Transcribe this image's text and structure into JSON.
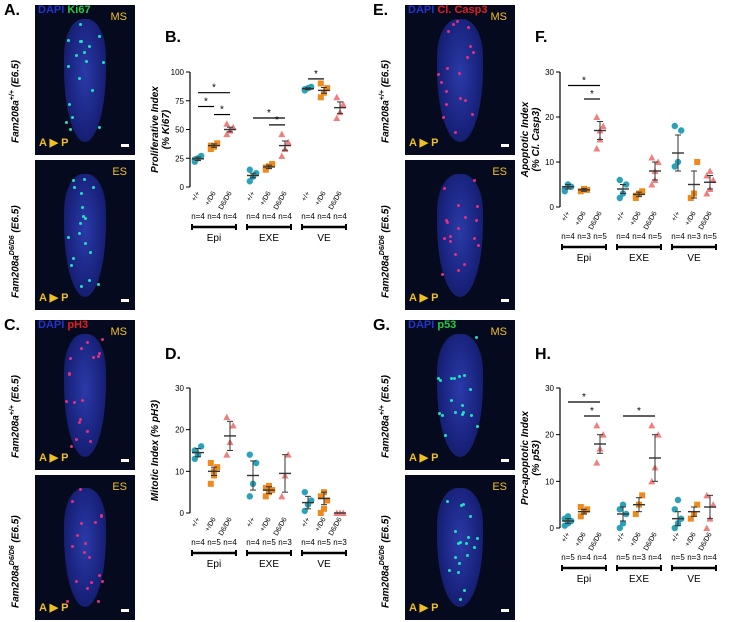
{
  "panels": [
    {
      "id": "A",
      "label": "A.",
      "type": "image",
      "ch1": "DAPI",
      "ch2": "Ki67",
      "ch2_color": "#22cc44",
      "stage_top": "MS",
      "stage_bottom": "ES",
      "axis": "A",
      "axis_p": "P",
      "geno_top_base": "Fam208a",
      "geno_top_sup": "+/+",
      "geno_top_suffix": "(E6.5)",
      "geno_bot_base": "Fam208a",
      "geno_bot_sup": "D6/D6",
      "geno_bot_suffix": "(E6.5)",
      "dot": "#22e0c0"
    },
    {
      "id": "E",
      "label": "E.",
      "type": "image",
      "ch1": "DAPI",
      "ch2": "Cl. Casp3",
      "ch2_color": "#e02020",
      "stage_top": "MS",
      "stage_bottom": "ES",
      "axis": "A",
      "axis_p": "P",
      "geno_top_base": "Fam208a",
      "geno_top_sup": "+/+",
      "geno_top_suffix": "(E6.5)",
      "geno_bot_base": "Fam208a",
      "geno_bot_sup": "D6/D6",
      "geno_bot_suffix": "(E6.5)",
      "dot": "#e03080"
    },
    {
      "id": "C",
      "label": "C.",
      "type": "image",
      "ch1": "DAPI",
      "ch2": "pH3",
      "ch2_color": "#e02020",
      "stage_top": "MS",
      "stage_bottom": "ES",
      "axis": "A",
      "axis_p": "P",
      "geno_top_base": "Fam208a",
      "geno_top_sup": "+/+",
      "geno_top_suffix": "(E6.5)",
      "geno_bot_base": "Fam208a",
      "geno_bot_sup": "D6/D6",
      "geno_bot_suffix": "(E6.5)",
      "dot": "#e03080"
    },
    {
      "id": "G",
      "label": "G.",
      "type": "image",
      "ch1": "DAPI",
      "ch2": "p53",
      "ch2_color": "#22cc44",
      "stage_top": "MS",
      "stage_bottom": "ES",
      "axis": "A",
      "axis_p": "P",
      "geno_top_base": "Fam208a",
      "geno_top_sup": "+/+",
      "geno_top_suffix": "(E6.5)",
      "geno_bot_base": "Fam208a",
      "geno_bot_sup": "D6/D6",
      "geno_bot_suffix": "(E6.5)",
      "dot": "#22e0c0"
    }
  ],
  "colors": {
    "wt": "#2aa3b8",
    "het": "#f08a1c",
    "ko": "#f08080"
  },
  "chart_data": [
    {
      "panel_label": "B.",
      "type": "scatter",
      "ylabel": "Proliferative Index (% Ki67)",
      "ylim": [
        0,
        100
      ],
      "yticks": [
        0,
        25,
        50,
        75,
        100
      ],
      "genotypes": [
        "+/+",
        "+/D6",
        "D6/D6"
      ],
      "groups": [
        "Epi",
        "EXE",
        "VE"
      ],
      "n_labels": [
        "n=4",
        "n=4",
        "n=4",
        "n=4",
        "n=4",
        "n=4",
        "n=4",
        "n=4",
        "n=4"
      ],
      "points": [
        [
          [
            22,
            25,
            27,
            24
          ],
          [
            33,
            35,
            38,
            36
          ],
          [
            46,
            49,
            52,
            55
          ]
        ],
        [
          [
            5,
            9,
            12,
            15
          ],
          [
            15,
            18,
            20,
            17
          ],
          [
            27,
            33,
            39,
            46
          ]
        ],
        [
          [
            84,
            86,
            87,
            85
          ],
          [
            78,
            82,
            86,
            90
          ],
          [
            60,
            65,
            72,
            78
          ]
        ]
      ],
      "mean": [
        [
          24.5,
          36,
          50
        ],
        [
          10,
          17.5,
          36
        ],
        [
          85.5,
          84,
          69
        ]
      ],
      "sem": [
        [
          1.5,
          1.5,
          2
        ],
        [
          2,
          1.5,
          4
        ],
        [
          0.8,
          2.5,
          5
        ]
      ],
      "sig": [
        {
          "g": 0,
          "a": 0,
          "b": 1,
          "y": 70,
          "text": "*"
        },
        {
          "g": 0,
          "a": 0,
          "b": 2,
          "y": 82,
          "text": "*"
        },
        {
          "g": 0,
          "a": 1,
          "b": 2,
          "y": 63,
          "text": "*"
        },
        {
          "g": 1,
          "a": 0,
          "b": 2,
          "y": 60,
          "text": "*"
        },
        {
          "g": 1,
          "a": 1,
          "b": 2,
          "y": 54,
          "text": "*"
        },
        {
          "g": 2,
          "a": 0,
          "b": 1,
          "y": 94,
          "text": "*"
        }
      ]
    },
    {
      "panel_label": "F.",
      "type": "scatter",
      "ylabel": "Apoptotic Index (% Cl. Casp3)",
      "ylim": [
        0,
        30
      ],
      "yticks": [
        0,
        10,
        20,
        30
      ],
      "genotypes": [
        "+/+",
        "+/D6",
        "D6/D6"
      ],
      "groups": [
        "Epi",
        "EXE",
        "VE"
      ],
      "n_labels": [
        "n=4",
        "n=3",
        "n=5",
        "n=4",
        "n=4",
        "n=5",
        "n=4",
        "n=3",
        "n=5"
      ],
      "points": [
        [
          [
            4,
            5,
            4.5,
            3.5
          ],
          [
            3.5,
            4,
            3.8
          ],
          [
            13,
            15,
            18,
            20,
            17
          ]
        ],
        [
          [
            2,
            3,
            5,
            6
          ],
          [
            2,
            3,
            3.5,
            2.5
          ],
          [
            5,
            6,
            10,
            11,
            8
          ]
        ],
        [
          [
            9,
            10,
            17,
            18
          ],
          [
            2,
            3,
            10
          ],
          [
            3,
            4,
            6,
            7,
            8
          ]
        ]
      ],
      "mean": [
        [
          4.5,
          3.8,
          17
        ],
        [
          4,
          2.8,
          8
        ],
        [
          12,
          5,
          5.5
        ]
      ],
      "sem": [
        [
          0.5,
          0.3,
          2
        ],
        [
          1,
          0.5,
          2
        ],
        [
          4,
          3,
          1.5
        ]
      ],
      "sig": [
        {
          "g": 0,
          "a": 0,
          "b": 2,
          "y": 27,
          "text": "*"
        },
        {
          "g": 0,
          "a": 1,
          "b": 2,
          "y": 24,
          "text": "*"
        }
      ]
    },
    {
      "panel_label": "D.",
      "type": "scatter",
      "ylabel": "Mitotic Index (% pH3)",
      "ylim": [
        0,
        30
      ],
      "yticks": [
        0,
        10,
        20,
        30
      ],
      "genotypes": [
        "+/+",
        "+/D6",
        "D6/D6"
      ],
      "groups": [
        "Epi",
        "EXE",
        "VE"
      ],
      "n_labels": [
        "n=4",
        "n=5",
        "n=4",
        "n=4",
        "n=5",
        "n=3",
        "n=4",
        "n=5",
        "n=3"
      ],
      "points": [
        [
          [
            13,
            14,
            16,
            15
          ],
          [
            7,
            9,
            11,
            12,
            10
          ],
          [
            14,
            17,
            21,
            23
          ]
        ],
        [
          [
            4,
            7,
            12,
            14
          ],
          [
            4,
            5,
            5.5,
            6,
            6.5
          ],
          [
            4,
            9,
            14
          ]
        ],
        [
          [
            0.5,
            2,
            3,
            5
          ],
          [
            0,
            1,
            3,
            4,
            5
          ],
          [
            0,
            0,
            0
          ]
        ]
      ],
      "mean": [
        [
          14.5,
          10,
          18.5
        ],
        [
          9,
          5.5,
          9.5
        ],
        [
          2.5,
          3.5,
          0
        ]
      ],
      "sem": [
        [
          1,
          1,
          3.5
        ],
        [
          3.5,
          0.8,
          4.5
        ],
        [
          1.5,
          1.5,
          0
        ]
      ],
      "sig": []
    },
    {
      "panel_label": "H.",
      "type": "scatter",
      "ylabel": "Pro-apoptotic Index (% p53)",
      "ylim": [
        0,
        30
      ],
      "yticks": [
        0,
        10,
        20,
        30
      ],
      "genotypes": [
        "+/+",
        "+/D6",
        "D6/D6"
      ],
      "groups": [
        "Epi",
        "EXE",
        "VE"
      ],
      "n_labels": [
        "n=5",
        "n=4",
        "n=4",
        "n=5",
        "n=3",
        "n=4",
        "n=5",
        "n=3",
        "n=4"
      ],
      "points": [
        [
          [
            0.5,
            1,
            1.5,
            2,
            2.5
          ],
          [
            2.5,
            3.5,
            4,
            4.5
          ],
          [
            14,
            17,
            20,
            22
          ]
        ],
        [
          [
            0,
            1,
            3,
            4,
            5
          ],
          [
            3,
            5,
            7
          ],
          [
            10,
            13,
            20,
            22
          ]
        ],
        [
          [
            0,
            1,
            2,
            4,
            6
          ],
          [
            2,
            3,
            5
          ],
          [
            0,
            2,
            5,
            7
          ]
        ]
      ],
      "mean": [
        [
          1.5,
          3.5,
          18
        ],
        [
          3,
          5,
          15
        ],
        [
          2,
          3.5,
          4.5
        ]
      ],
      "sem": [
        [
          0.5,
          0.5,
          2
        ],
        [
          1.5,
          1.5,
          5
        ],
        [
          1.5,
          1,
          2.5
        ]
      ],
      "sig": [
        {
          "g": 0,
          "a": 0,
          "b": 2,
          "y": 27,
          "text": "*"
        },
        {
          "g": 0,
          "a": 1,
          "b": 2,
          "y": 24,
          "text": "*"
        },
        {
          "g": 1,
          "a": 0,
          "b": 2,
          "y": 24,
          "text": "*"
        }
      ]
    }
  ]
}
